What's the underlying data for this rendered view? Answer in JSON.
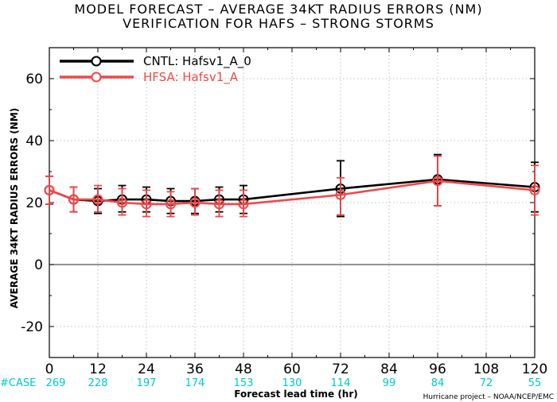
{
  "chart_data": {
    "type": "line",
    "title": "MODEL FORECAST – AVERAGE 34KT RADIUS ERRORS (NM)",
    "subtitle": "VERIFICATION FOR HAFS – STRONG STORMS",
    "xlabel": "Forecast lead time (hr)",
    "ylabel": "AVERAGE 34KT RADIUS ERRORS (NM)",
    "xlim": [
      0,
      120
    ],
    "ylim": [
      -30,
      70
    ],
    "x_ticks": [
      0,
      12,
      24,
      36,
      48,
      60,
      72,
      84,
      96,
      108,
      120
    ],
    "y_ticks": [
      -20,
      0,
      20,
      40,
      60
    ],
    "grid": true,
    "legend_position": "top-left",
    "case_label": "#CASE",
    "case_counts": [
      {
        "x": 0,
        "n": "269"
      },
      {
        "x": 12,
        "n": "228"
      },
      {
        "x": 24,
        "n": "197"
      },
      {
        "x": 36,
        "n": "174"
      },
      {
        "x": 48,
        "n": "153"
      },
      {
        "x": 60,
        "n": "130"
      },
      {
        "x": 72,
        "n": "114"
      },
      {
        "x": 84,
        "n": "99"
      },
      {
        "x": 96,
        "n": "84"
      },
      {
        "x": 108,
        "n": "72"
      },
      {
        "x": 120,
        "n": "55"
      }
    ],
    "series": [
      {
        "name": "CNTL: Hafsv1_A_0",
        "color": "#000000",
        "x": [
          0,
          6,
          12,
          18,
          24,
          30,
          36,
          42,
          48,
          72,
          96,
          120
        ],
        "y": [
          24.0,
          21.0,
          20.5,
          21.0,
          21.0,
          20.5,
          20.5,
          21.0,
          21.0,
          24.5,
          27.5,
          25.0
        ],
        "err_low": [
          19.5,
          17.0,
          16.5,
          17.0,
          17.0,
          16.5,
          16.5,
          17.0,
          16.5,
          15.5,
          19.0,
          17.0
        ],
        "err_high": [
          28.5,
          25.0,
          24.5,
          25.5,
          25.0,
          24.5,
          24.5,
          25.0,
          25.5,
          33.5,
          35.5,
          33.0
        ]
      },
      {
        "name": "HFSA: Hafsv1_A",
        "color": "#f04848",
        "x": [
          0,
          6,
          12,
          18,
          24,
          30,
          36,
          42,
          48,
          72,
          96,
          120
        ],
        "y": [
          24.0,
          21.0,
          21.0,
          20.0,
          19.5,
          19.5,
          20.0,
          19.5,
          19.5,
          22.5,
          27.0,
          24.0
        ],
        "err_low": [
          19.5,
          17.0,
          17.0,
          16.0,
          15.5,
          15.5,
          16.0,
          15.5,
          15.5,
          16.0,
          19.0,
          16.0
        ],
        "err_high": [
          28.5,
          25.0,
          25.5,
          24.5,
          24.0,
          23.5,
          24.5,
          24.0,
          24.0,
          28.0,
          35.0,
          32.0
        ]
      }
    ]
  },
  "credit": "Hurricane project – NOAA/NCEP/EMC"
}
